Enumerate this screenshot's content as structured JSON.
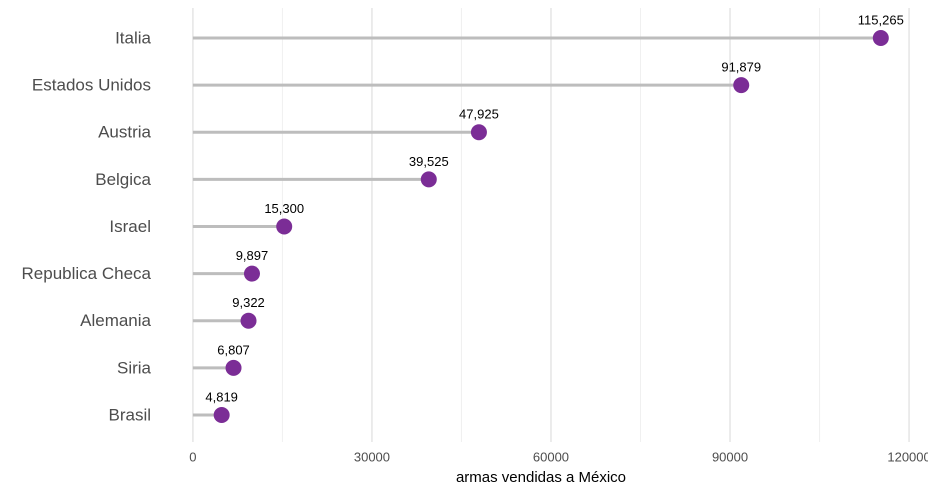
{
  "chart_data": {
    "type": "lollipop",
    "x_label": "armas vendidas a México",
    "categories": [
      "Italia",
      "Estados Unidos",
      "Austria",
      "Belgica",
      "Israel",
      "Republica Checa",
      "Alemania",
      "Siria",
      "Brasil"
    ],
    "values": [
      115265,
      91879,
      47925,
      39525,
      15300,
      9897,
      9322,
      6807,
      4819
    ],
    "value_labels": [
      "115,265",
      "91,879",
      "47,925",
      "39,525",
      "15,300",
      "9,897",
      "9,322",
      "6,807",
      "4,819"
    ],
    "color": "#7b2d96",
    "stem_color": "#bdbdbd",
    "xlim": [
      -3000,
      122000
    ],
    "xticks": [
      0,
      30000,
      60000,
      90000,
      120000
    ],
    "grid": true
  }
}
